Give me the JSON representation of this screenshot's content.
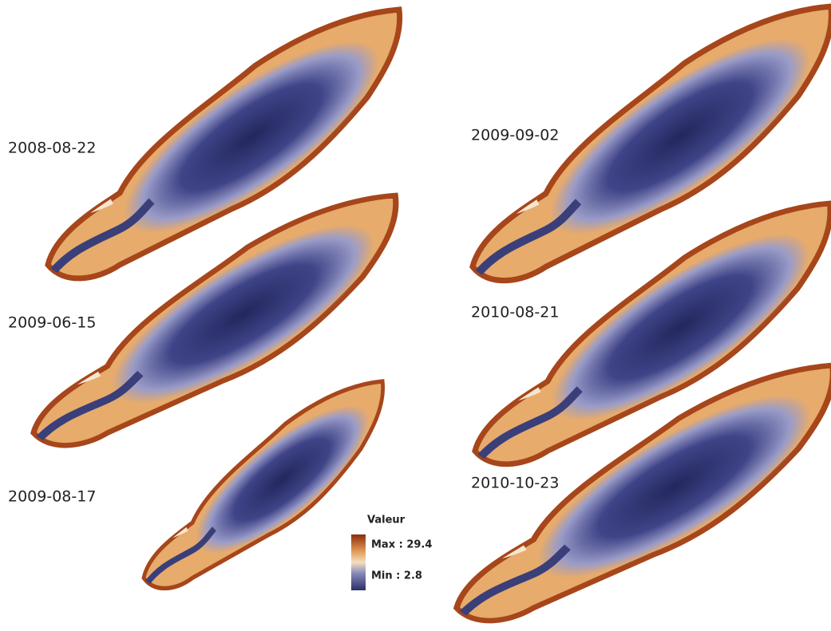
{
  "maps": [
    {
      "label": "2008-08-22"
    },
    {
      "label": "2009-06-15"
    },
    {
      "label": "2009-08-17"
    },
    {
      "label": "2009-09-02"
    },
    {
      "label": "2010-08-21"
    },
    {
      "label": "2010-10-23"
    }
  ],
  "legend": {
    "title": "Valeur",
    "max": "Max : 29.4",
    "min": "Min : 2.8"
  }
}
